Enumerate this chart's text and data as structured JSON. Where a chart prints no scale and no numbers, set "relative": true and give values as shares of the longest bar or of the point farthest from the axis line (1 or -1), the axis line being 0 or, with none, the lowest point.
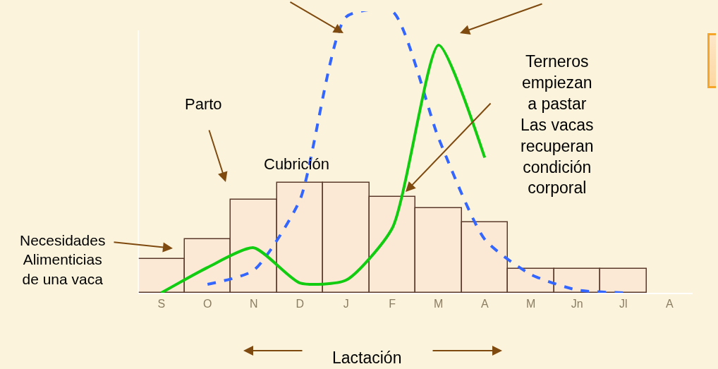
{
  "chart_data": {
    "type": "bar",
    "relative": true,
    "categories": [
      "S",
      "O",
      "N",
      "D",
      "J",
      "F",
      "M",
      "A",
      "M",
      "Jn",
      "Jl",
      "A"
    ],
    "values": [
      0.12,
      0.19,
      0.33,
      0.39,
      0.39,
      0.34,
      0.3,
      0.25,
      0.085,
      0.085,
      0.085,
      null
    ],
    "color": "#fbe9d5",
    "series": [
      {
        "type": "line",
        "color": "#3366ff",
        "line_style": "dashed",
        "values": [
          null,
          0.03,
          0.08,
          0.33,
          0.98,
          1,
          0.55,
          0.19,
          0.065,
          0.01,
          0,
          null
        ]
      },
      {
        "type": "line",
        "color": "#11cc11",
        "line_style": "solid",
        "values": [
          0,
          0.09,
          0.16,
          0.035,
          0.045,
          0.23,
          0.88,
          0.48,
          null,
          null,
          null,
          null
        ]
      }
    ],
    "annotations": [
      "Necesidades\nAlimenticias\nde una vaca",
      "Parto",
      "Cubrición",
      "Terneros\nempiezan\na pastar\nLas vacas\nrecuperan\ncondición\ncorporal",
      "Lactación"
    ],
    "grid": false
  }
}
